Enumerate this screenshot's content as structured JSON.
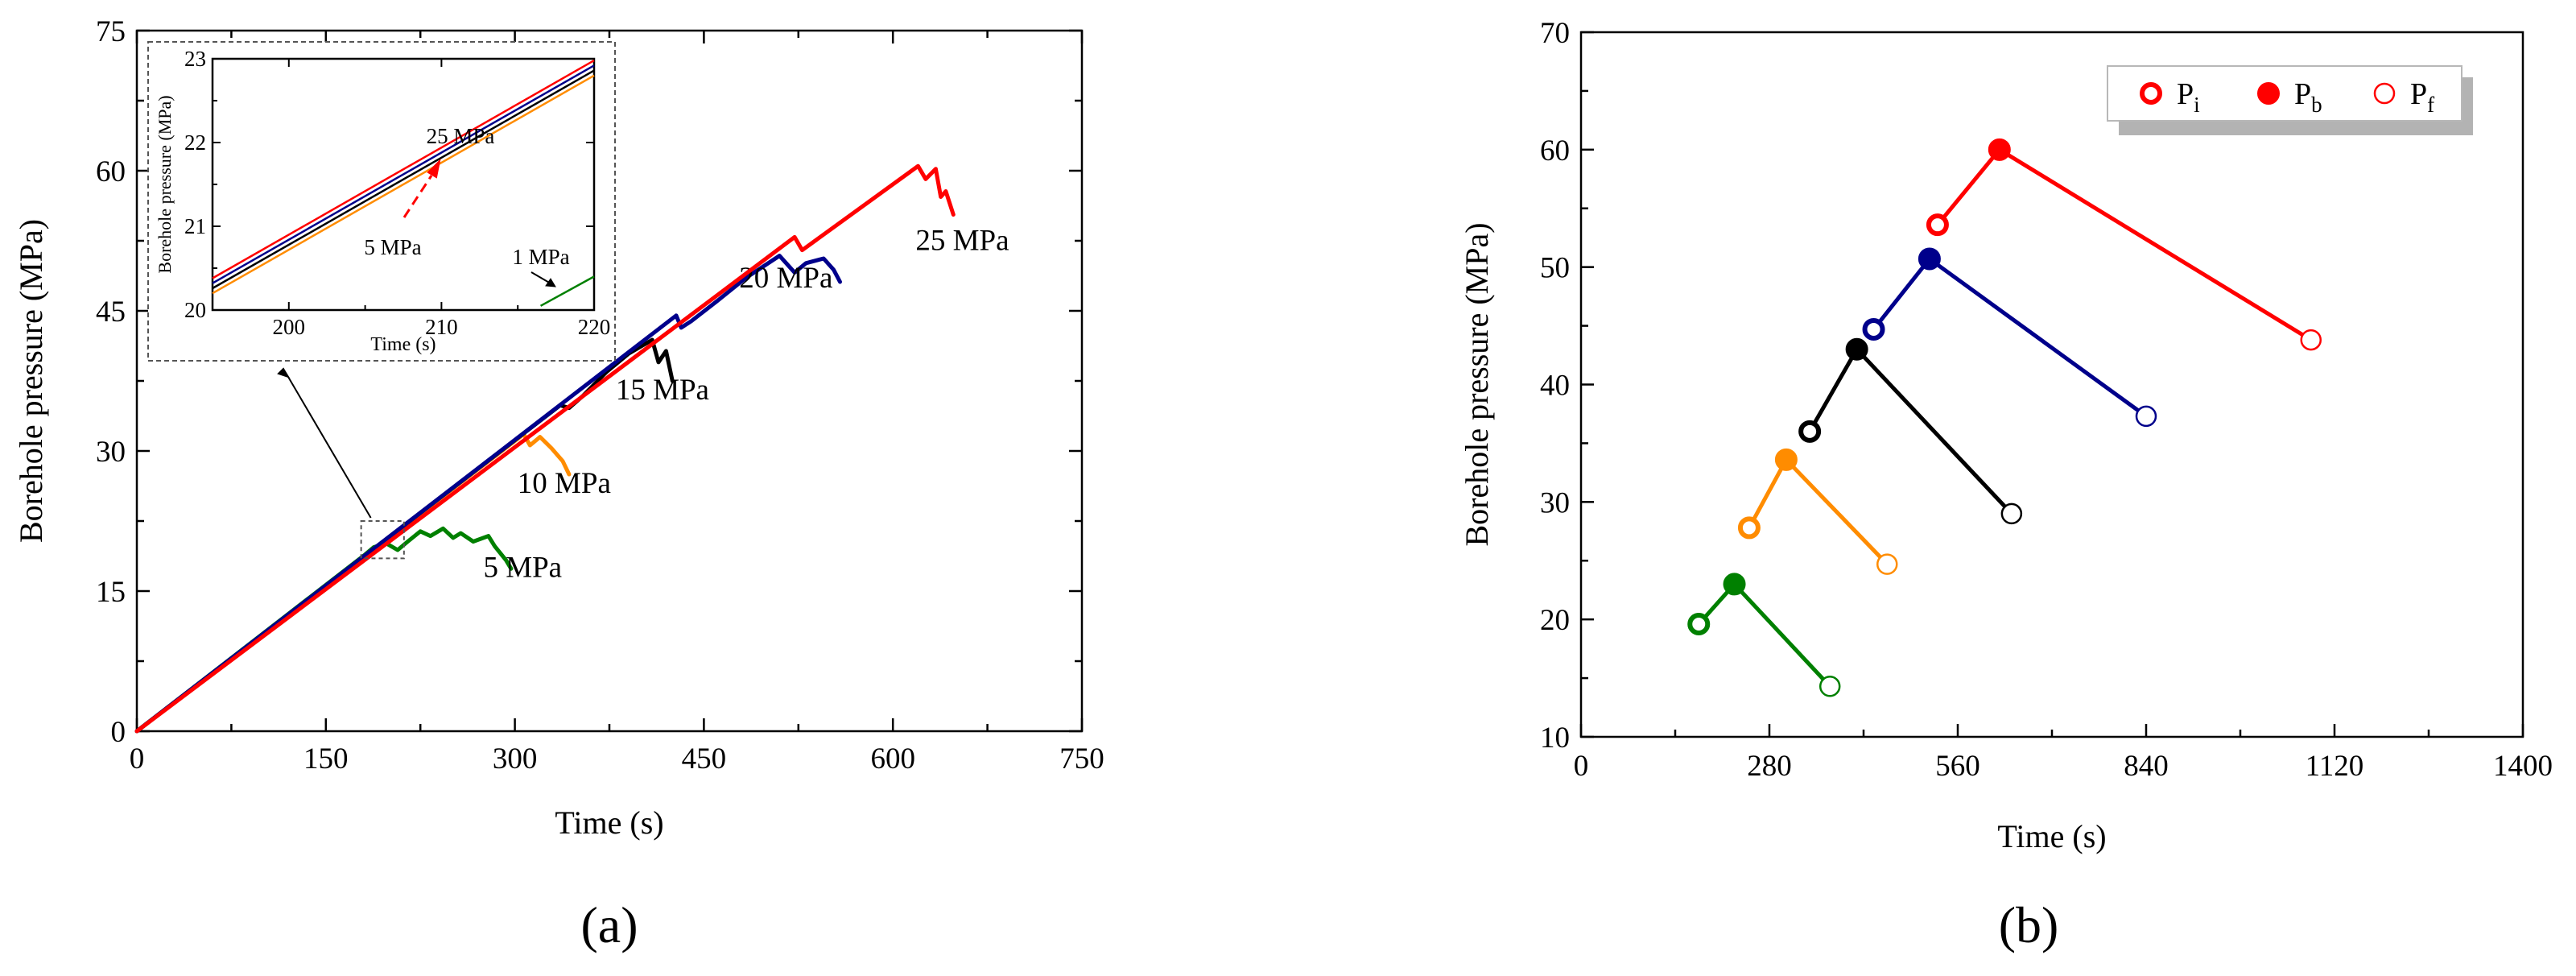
{
  "chart_data": [
    {
      "panel_label": "(a)",
      "type": "line",
      "xlabel": "Time (s)",
      "ylabel": "Borehole pressure (MPa)",
      "xlim": [
        0,
        750
      ],
      "ylim": [
        0,
        75
      ],
      "xticks": [
        0,
        150,
        300,
        450,
        600,
        750
      ],
      "yticks": [
        0,
        15,
        30,
        45,
        60,
        75
      ],
      "series": [
        {
          "name": "5 MPa",
          "color": "#008000",
          "label": "5 MPa",
          "label_at": [
            275,
            16.5
          ],
          "points": [
            [
              0,
              0
            ],
            [
              181,
              18.9
            ],
            [
              188,
              19.7
            ],
            [
              198,
              20.1
            ],
            [
              207,
              19.4
            ],
            [
              215,
              20.3
            ],
            [
              225,
              21.4
            ],
            [
              233,
              20.9
            ],
            [
              243,
              21.7
            ],
            [
              251,
              20.7
            ],
            [
              257,
              21.2
            ],
            [
              267,
              20.3
            ],
            [
              279,
              20.9
            ],
            [
              284,
              19.8
            ],
            [
              293,
              18.3
            ],
            [
              297,
              17.4
            ]
          ]
        },
        {
          "name": "10 MPa",
          "color": "#ff8c00",
          "label": "10 MPa",
          "label_at": [
            302,
            25.5
          ],
          "points": [
            [
              0,
              0
            ],
            [
              307,
              31.8
            ],
            [
              312,
              30.6
            ],
            [
              320,
              31.5
            ],
            [
              329,
              30.3
            ],
            [
              338,
              28.9
            ],
            [
              343,
              27.5
            ]
          ]
        },
        {
          "name": "15 MPa",
          "color": "#000000",
          "label": "15 MPa",
          "label_at": [
            380,
            35.5
          ],
          "points": [
            [
              0,
              0
            ],
            [
              336,
              34.9
            ],
            [
              343,
              34.6
            ],
            [
              354,
              35.9
            ],
            [
              373,
              38.5
            ],
            [
              390,
              40.4
            ],
            [
              409,
              41.9
            ],
            [
              414,
              39.5
            ],
            [
              420,
              40.7
            ],
            [
              425,
              37.5
            ]
          ]
        },
        {
          "name": "20 MPa",
          "color": "#00008b",
          "label": "20 MPa",
          "label_at": [
            478,
            47.5
          ],
          "points": [
            [
              0,
              0
            ],
            [
              428,
              44.5
            ],
            [
              432,
              43.2
            ],
            [
              440,
              43.9
            ],
            [
              460,
              46.0
            ],
            [
              483,
              48.5
            ],
            [
              510,
              50.9
            ],
            [
              522,
              49.1
            ],
            [
              531,
              50.1
            ],
            [
              545,
              50.6
            ],
            [
              553,
              49.4
            ],
            [
              558,
              48.1
            ]
          ]
        },
        {
          "name": "25 MPa",
          "color": "#ff0000",
          "label": "25 MPa",
          "label_at": [
            618,
            51.5
          ],
          "points": [
            [
              0,
              0
            ],
            [
              522,
              52.9
            ],
            [
              528,
              51.5
            ],
            [
              620,
              60.5
            ],
            [
              626,
              59.1
            ],
            [
              634,
              60.2
            ],
            [
              638,
              57.2
            ],
            [
              642,
              57.8
            ],
            [
              648,
              55.3
            ]
          ]
        }
      ],
      "inset": {
        "xlabel": "Time (s)",
        "ylabel": "Borehole pressure (MPa)",
        "xlim": [
          195,
          220
        ],
        "ylim": [
          20,
          23
        ],
        "xticks": [
          200,
          210,
          220
        ],
        "yticks": [
          20,
          21,
          22,
          23
        ],
        "series": [
          {
            "name": "25 MPa",
            "color": "#ff0000",
            "points": [
              [
                195,
                20.38
              ],
              [
                220,
                22.98
              ]
            ]
          },
          {
            "name": "20 MPa",
            "color": "#00008b",
            "points": [
              [
                195,
                20.32
              ],
              [
                220,
                22.92
              ]
            ]
          },
          {
            "name": "15 MPa",
            "color": "#000000",
            "points": [
              [
                195,
                20.26
              ],
              [
                220,
                22.86
              ]
            ]
          },
          {
            "name": "10 MPa",
            "color": "#ff8c00",
            "points": [
              [
                195,
                20.2
              ],
              [
                220,
                22.8
              ]
            ]
          },
          {
            "name": "1 MPa",
            "color": "#008000",
            "points": [
              [
                216.5,
                20.05
              ],
              [
                220,
                20.4
              ]
            ]
          }
        ],
        "annotations": {
          "top_label": "25 MPa",
          "bottom_label": "5 MPa",
          "low_label": "1 MPa"
        }
      }
    },
    {
      "panel_label": "(b)",
      "type": "scatter",
      "xlabel": "Time (s)",
      "ylabel": "Borehole pressure (MPa)",
      "xlim": [
        0,
        1400
      ],
      "ylim": [
        10,
        70
      ],
      "xticks": [
        0,
        280,
        560,
        840,
        1120,
        1400
      ],
      "yticks": [
        10,
        20,
        30,
        40,
        50,
        60,
        70
      ],
      "legend": {
        "placement": "top-right",
        "entries": [
          {
            "symbol": "P",
            "subscript": "i",
            "marker": "thick-ring"
          },
          {
            "symbol": "P",
            "subscript": "b",
            "marker": "filled"
          },
          {
            "symbol": "P",
            "subscript": "f",
            "marker": "thin-ring"
          }
        ]
      },
      "series": [
        {
          "name": "5 MPa",
          "color": "#008000",
          "Pi": [
            175,
            19.6
          ],
          "Pb": [
            228,
            23.0
          ],
          "Pf": [
            370,
            14.3
          ]
        },
        {
          "name": "10 MPa",
          "color": "#ff8c00",
          "Pi": [
            250,
            27.8
          ],
          "Pb": [
            305,
            33.6
          ],
          "Pf": [
            455,
            24.7
          ]
        },
        {
          "name": "15 MPa",
          "color": "#000000",
          "Pi": [
            340,
            36.0
          ],
          "Pb": [
            410,
            43.0
          ],
          "Pf": [
            640,
            29.0
          ]
        },
        {
          "name": "20 MPa",
          "color": "#00008b",
          "Pi": [
            435,
            44.7
          ],
          "Pb": [
            518,
            50.7
          ],
          "Pf": [
            840,
            37.3
          ]
        },
        {
          "name": "25 MPa",
          "color": "#ff0000",
          "Pi": [
            530,
            53.6
          ],
          "Pb": [
            622,
            60.0
          ],
          "Pf": [
            1085,
            43.8
          ]
        }
      ]
    }
  ]
}
